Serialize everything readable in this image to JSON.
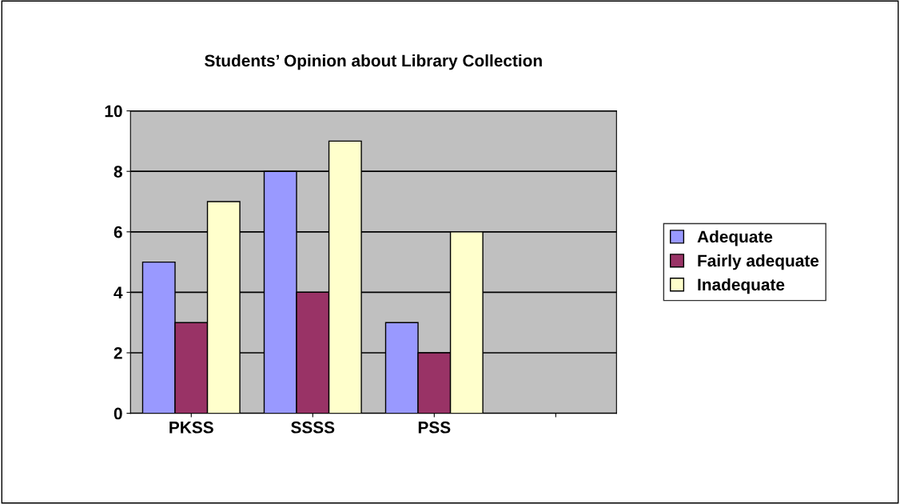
{
  "chart_data": {
    "type": "bar",
    "title": "Students’ Opinion about Library Collection",
    "categories": [
      "PKSS",
      "SSSS",
      "PSS",
      null
    ],
    "series": [
      {
        "name": "Adequate",
        "color": "#9999ff",
        "values": [
          5,
          8,
          3,
          null
        ]
      },
      {
        "name": "Fairly adequate",
        "color": "#993366",
        "values": [
          3,
          4,
          2,
          null
        ]
      },
      {
        "name": "Inadequate",
        "color": "#ffffcc",
        "values": [
          7,
          9,
          6,
          null
        ]
      }
    ],
    "ylim": [
      0,
      10
    ],
    "yticks": [
      0,
      2,
      4,
      6,
      8,
      10
    ],
    "grid": "y",
    "legend": "right"
  }
}
